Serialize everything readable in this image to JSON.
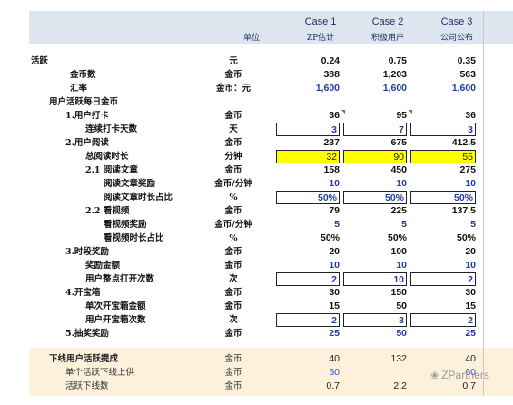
{
  "header": {
    "unit_col": "单位",
    "cases": [
      {
        "title": "Case 1",
        "subtitle": "ZP估计"
      },
      {
        "title": "Case 2",
        "subtitle": "积极用户"
      },
      {
        "title": "Case 3",
        "subtitle": "公司公布"
      }
    ]
  },
  "rows": [
    {
      "label": "活跃",
      "unit": "元",
      "v": [
        "0.24",
        "0.75",
        "0.35"
      ]
    },
    {
      "label": "金币数",
      "unit": "金币",
      "v": [
        "388",
        "1,203",
        "563"
      ]
    },
    {
      "label": "汇率",
      "unit": "金币：元",
      "v": [
        "1,600",
        "1,600",
        "1,600"
      ]
    },
    {
      "label": "用户活跃每日金币",
      "unit": "",
      "v": [
        "",
        "",
        ""
      ]
    },
    {
      "label": "1.用户打卡",
      "unit": "金币",
      "v": [
        "36",
        "95",
        "36"
      ]
    },
    {
      "label": "连续打卡天数",
      "unit": "天",
      "v": [
        "3",
        "7",
        "3"
      ]
    },
    {
      "label": "2.用户阅读",
      "unit": "金币",
      "v": [
        "237",
        "675",
        "412.5"
      ]
    },
    {
      "label": "总阅读时长",
      "unit": "分钟",
      "v": [
        "32",
        "90",
        "55"
      ]
    },
    {
      "label": "2.1 阅读文章",
      "unit": "金币",
      "v": [
        "158",
        "450",
        "275"
      ]
    },
    {
      "label": "阅读文章奖励",
      "unit": "金币/分钟",
      "v": [
        "10",
        "10",
        "10"
      ]
    },
    {
      "label": "阅读文章时长占比",
      "unit": "%",
      "v": [
        "50%",
        "50%",
        "50%"
      ]
    },
    {
      "label": "2.2 看视频",
      "unit": "金币",
      "v": [
        "79",
        "225",
        "137.5"
      ]
    },
    {
      "label": "看视频奖励",
      "unit": "金币/分钟",
      "v": [
        "5",
        "5",
        "5"
      ]
    },
    {
      "label": "看视频时长占比",
      "unit": "%",
      "v": [
        "50%",
        "50%",
        "50%"
      ]
    },
    {
      "label": "3.时段奖励",
      "unit": "金币",
      "v": [
        "20",
        "100",
        "20"
      ]
    },
    {
      "label": "奖励金额",
      "unit": "金币",
      "v": [
        "10",
        "10",
        "10"
      ]
    },
    {
      "label": "用户整点打开次数",
      "unit": "次",
      "v": [
        "2",
        "10",
        "2"
      ]
    },
    {
      "label": "4.开宝箱",
      "unit": "金币",
      "v": [
        "30",
        "150",
        "30"
      ]
    },
    {
      "label": "单次开宝箱金额",
      "unit": "金币",
      "v": [
        "15",
        "50",
        "15"
      ]
    },
    {
      "label": "用户开宝箱次数",
      "unit": "次",
      "v": [
        "2",
        "3",
        "2"
      ]
    },
    {
      "label": "5.抽奖奖励",
      "unit": "金币",
      "v": [
        "25",
        "50",
        "25"
      ]
    }
  ],
  "footer": [
    {
      "label": "下线用户活跃提成",
      "unit": "金币",
      "v": [
        "40",
        "132",
        "40"
      ]
    },
    {
      "label": "单个活跃下线上供",
      "unit": "金币",
      "v": [
        "60",
        "",
        "60"
      ]
    },
    {
      "label": "活跃下线数",
      "unit": "金币",
      "v": [
        "0.7",
        "2.2",
        "0.7"
      ]
    }
  ],
  "watermark": "ZPartners",
  "colors": {
    "header_bg": "#dde6ef",
    "footer_bg": "#fdf1dc",
    "highlight": "#ffff00",
    "blue_value": "#1f3da3"
  }
}
